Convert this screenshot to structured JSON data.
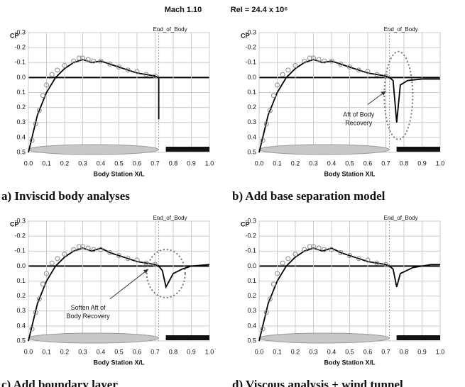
{
  "title": [
    "Mach 1.10",
    "ReI = 24.4 x 10⁶"
  ],
  "chart_data": [
    {
      "type": "line",
      "caption": "a) Inviscid body analyses",
      "xlabel": "Body Station X/L",
      "ylabel": "CP",
      "xlim": [
        0,
        1
      ],
      "ylim": [
        0.5,
        -0.3
      ],
      "xticks": [
        {
          "value": 0,
          "label": "0.0"
        },
        0.1,
        0.2,
        0.3,
        0.4,
        0.5,
        0.6,
        0.7,
        0.8,
        0.9,
        {
          "value": 1,
          "label": "1.0"
        }
      ],
      "yticks": [
        -0.3,
        -0.2,
        -0.1,
        {
          "value": 0,
          "label": "0.0"
        },
        0.1,
        0.2,
        0.3,
        0.4,
        0.5
      ],
      "grid": true,
      "vline": {
        "x": 0.72,
        "label": "End_of_Body"
      },
      "series": [
        {
          "style": "line",
          "color": "#000000",
          "x": [
            0,
            0.02,
            0.05,
            0.1,
            0.15,
            0.2,
            0.25,
            0.3,
            0.35,
            0.4,
            0.45,
            0.5,
            0.55,
            0.6,
            0.65,
            0.7,
            0.72,
            0.72
          ],
          "values": [
            0.5,
            0.4,
            0.25,
            0.1,
            0,
            -0.06,
            -0.1,
            -0.12,
            -0.1,
            -0.11,
            -0.09,
            -0.07,
            -0.05,
            -0.03,
            -0.02,
            -0.01,
            0,
            0.28
          ]
        },
        {
          "style": "markers",
          "color": "#888888",
          "x": [
            0.02,
            0.04,
            0.06,
            0.08,
            0.1,
            0.13,
            0.16,
            0.2,
            0.25,
            0.28,
            0.3,
            0.33,
            0.36,
            0.4,
            0.45,
            0.5,
            0.55,
            0.6,
            0.65,
            0.7
          ],
          "values": [
            0.42,
            0.31,
            0.22,
            0.12,
            0.05,
            -0.02,
            -0.05,
            -0.08,
            -0.11,
            -0.13,
            -0.13,
            -0.12,
            -0.11,
            -0.11,
            -0.09,
            -0.07,
            -0.05,
            -0.04,
            -0.02,
            -0.01
          ]
        }
      ]
    },
    {
      "type": "line",
      "caption": "b) Add base separation model",
      "xlabel": "Body Station X/L",
      "ylabel": "CP",
      "xlim": [
        0,
        1
      ],
      "ylim": [
        0.5,
        -0.3
      ],
      "xticks": [
        {
          "value": 0,
          "label": "0.0"
        },
        0.1,
        0.2,
        0.3,
        0.4,
        0.5,
        0.6,
        0.7,
        0.8,
        0.9,
        {
          "value": 1,
          "label": "1.0"
        }
      ],
      "yticks": [
        -0.3,
        -0.2,
        -0.1,
        {
          "value": 0,
          "label": "0.0"
        },
        0.1,
        0.2,
        0.3,
        0.4,
        0.5
      ],
      "grid": true,
      "vline": {
        "x": 0.72,
        "label": "End_of_Body"
      },
      "annotation": [
        "Aft of Body",
        "Recovery"
      ],
      "series": [
        {
          "style": "line",
          "color": "#000000",
          "x": [
            0,
            0.02,
            0.05,
            0.1,
            0.15,
            0.2,
            0.25,
            0.3,
            0.35,
            0.4,
            0.45,
            0.5,
            0.55,
            0.6,
            0.65,
            0.7,
            0.72,
            0.74,
            0.76,
            0.78,
            0.82,
            0.9,
            1
          ],
          "values": [
            0.5,
            0.4,
            0.25,
            0.1,
            0,
            -0.06,
            -0.1,
            -0.12,
            -0.1,
            -0.11,
            -0.09,
            -0.07,
            -0.05,
            -0.03,
            -0.02,
            -0.01,
            0,
            0.02,
            0.3,
            0.05,
            0.02,
            0.01,
            0.01
          ]
        },
        {
          "style": "markers",
          "color": "#888888",
          "x": [
            0.02,
            0.04,
            0.06,
            0.08,
            0.1,
            0.13,
            0.16,
            0.2,
            0.25,
            0.28,
            0.3,
            0.33,
            0.36,
            0.4,
            0.45,
            0.5,
            0.55,
            0.6,
            0.65,
            0.7
          ],
          "values": [
            0.42,
            0.31,
            0.22,
            0.12,
            0.05,
            -0.02,
            -0.05,
            -0.08,
            -0.11,
            -0.13,
            -0.13,
            -0.12,
            -0.11,
            -0.11,
            -0.09,
            -0.07,
            -0.05,
            -0.04,
            -0.02,
            -0.01
          ]
        }
      ]
    },
    {
      "type": "line",
      "caption": "c) Add boundary layer",
      "xlabel": "Body Station X/L",
      "ylabel": "CP",
      "xlim": [
        0,
        1
      ],
      "ylim": [
        0.5,
        -0.3
      ],
      "xticks": [
        {
          "value": 0,
          "label": "0.0"
        },
        0.1,
        0.2,
        0.3,
        0.4,
        0.5,
        0.6,
        0.7,
        0.8,
        0.9,
        {
          "value": 1,
          "label": "1.0"
        }
      ],
      "yticks": [
        -0.3,
        -0.2,
        -0.1,
        {
          "value": 0,
          "label": "0.0"
        },
        0.1,
        0.2,
        0.3,
        0.4,
        0.5
      ],
      "grid": true,
      "vline": {
        "x": 0.72,
        "label": "End_of_Body"
      },
      "annotation": [
        "Soften Aft of",
        "Body Recovery"
      ],
      "series": [
        {
          "style": "line",
          "color": "#000000",
          "x": [
            0,
            0.02,
            0.05,
            0.1,
            0.15,
            0.2,
            0.25,
            0.3,
            0.35,
            0.4,
            0.45,
            0.5,
            0.55,
            0.6,
            0.65,
            0.7,
            0.72,
            0.74,
            0.76,
            0.8,
            0.85,
            0.9,
            1
          ],
          "values": [
            0.5,
            0.4,
            0.25,
            0.1,
            0,
            -0.06,
            -0.1,
            -0.12,
            -0.1,
            -0.12,
            -0.09,
            -0.07,
            -0.05,
            -0.03,
            -0.02,
            -0.01,
            0,
            0.03,
            0.14,
            0.05,
            0.02,
            0,
            -0.01
          ]
        },
        {
          "style": "markers",
          "color": "#888888",
          "x": [
            0.02,
            0.04,
            0.06,
            0.08,
            0.1,
            0.13,
            0.16,
            0.2,
            0.25,
            0.28,
            0.3,
            0.33,
            0.36,
            0.4,
            0.45,
            0.5,
            0.55,
            0.6,
            0.65,
            0.7
          ],
          "values": [
            0.42,
            0.31,
            0.22,
            0.12,
            0.05,
            -0.02,
            -0.05,
            -0.08,
            -0.11,
            -0.13,
            -0.13,
            -0.12,
            -0.11,
            -0.11,
            -0.09,
            -0.07,
            -0.05,
            -0.04,
            -0.02,
            -0.01
          ]
        }
      ]
    },
    {
      "type": "line",
      "caption": "d) Viscous analysis + wind tunnel",
      "xlabel": "Body Station X/L",
      "ylabel": "CP",
      "xlim": [
        0,
        1
      ],
      "ylim": [
        0.5,
        -0.3
      ],
      "xticks": [
        {
          "value": 0,
          "label": "0.0"
        },
        0.1,
        0.2,
        0.3,
        0.4,
        0.5,
        0.6,
        0.7,
        0.8,
        0.9,
        {
          "value": 1,
          "label": "1.0"
        }
      ],
      "yticks": [
        -0.3,
        -0.2,
        -0.1,
        {
          "value": 0,
          "label": "0.0"
        },
        0.1,
        0.2,
        0.3,
        0.4,
        0.5
      ],
      "grid": true,
      "vline": {
        "x": 0.72,
        "label": "End_of_Body"
      },
      "series": [
        {
          "style": "line",
          "color": "#000000",
          "x": [
            0,
            0.02,
            0.05,
            0.1,
            0.15,
            0.2,
            0.25,
            0.3,
            0.35,
            0.4,
            0.45,
            0.5,
            0.55,
            0.6,
            0.65,
            0.7,
            0.72,
            0.74,
            0.76,
            0.78,
            0.85,
            0.9,
            0.95,
            1
          ],
          "values": [
            0.5,
            0.4,
            0.25,
            0.1,
            0,
            -0.06,
            -0.1,
            -0.12,
            -0.1,
            -0.12,
            -0.09,
            -0.07,
            -0.05,
            -0.03,
            -0.02,
            -0.01,
            0,
            0.02,
            0.14,
            0.05,
            0.01,
            0,
            -0.01,
            -0.01
          ]
        },
        {
          "style": "markers",
          "color": "#888888",
          "x": [
            0.02,
            0.04,
            0.06,
            0.08,
            0.1,
            0.13,
            0.16,
            0.2,
            0.25,
            0.28,
            0.3,
            0.33,
            0.36,
            0.4,
            0.45,
            0.5,
            0.55,
            0.6,
            0.65,
            0.7
          ],
          "values": [
            0.42,
            0.31,
            0.22,
            0.12,
            0.05,
            -0.02,
            -0.05,
            -0.08,
            -0.11,
            -0.13,
            -0.13,
            -0.12,
            -0.11,
            -0.11,
            -0.09,
            -0.07,
            -0.05,
            -0.04,
            -0.02,
            -0.01
          ]
        }
      ]
    }
  ]
}
